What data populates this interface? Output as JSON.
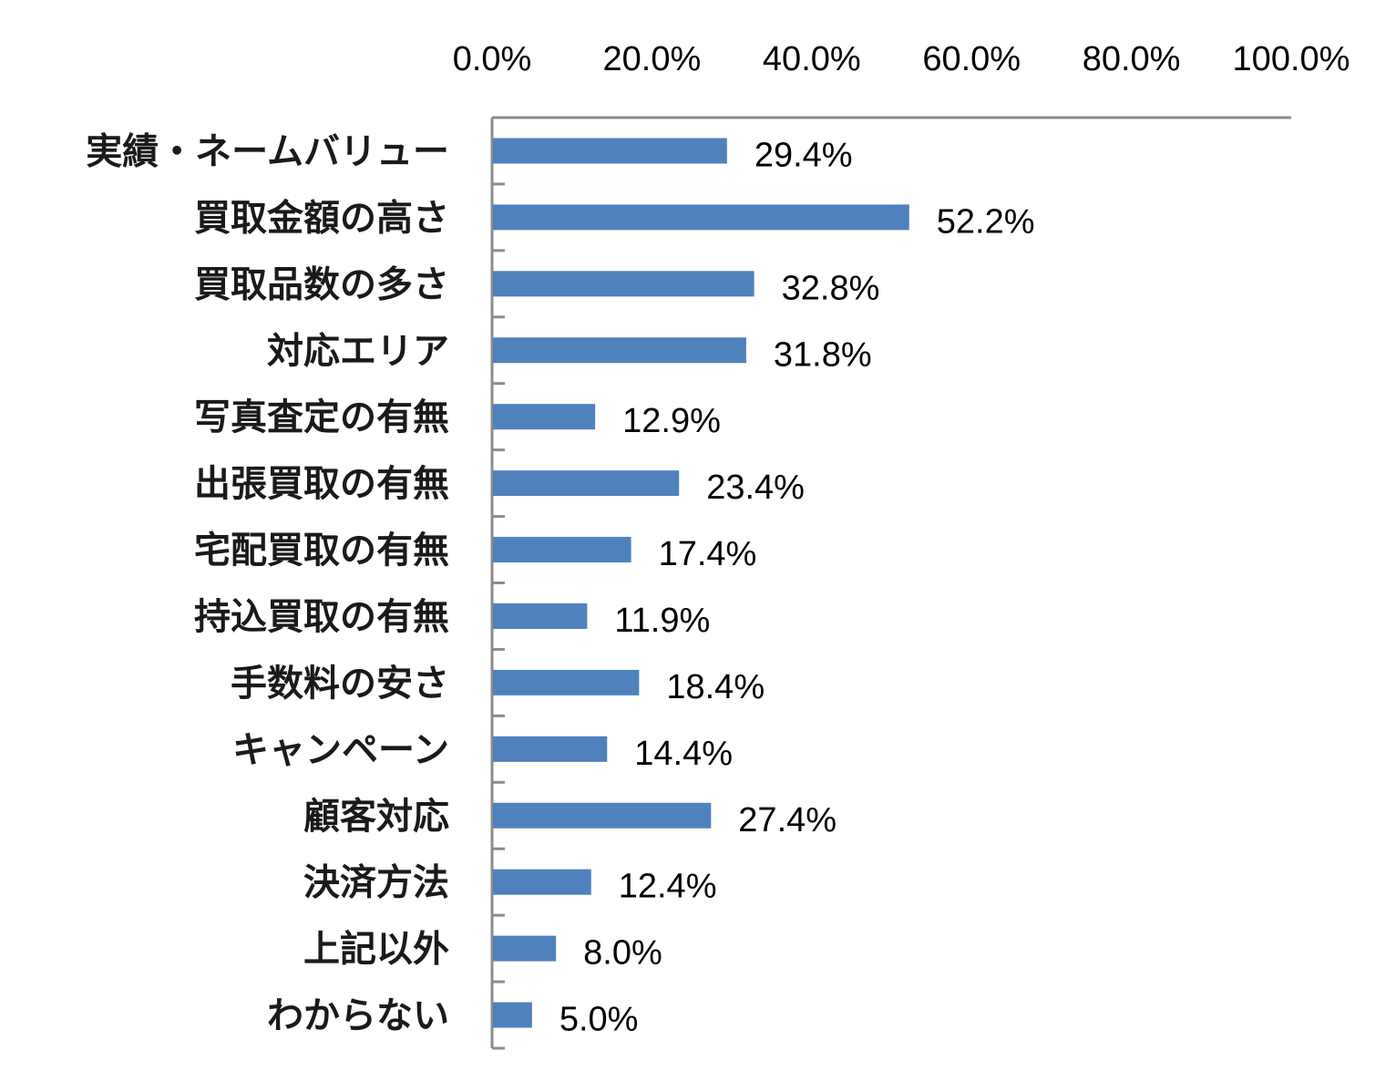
{
  "chart_data": {
    "type": "bar",
    "orientation": "horizontal",
    "categories": [
      "実績・ネームバリュー",
      "買取金額の高さ",
      "買取品数の多さ",
      "対応エリア",
      "写真査定の有無",
      "出張買取の有無",
      "宅配買取の有無",
      "持込買取の有無",
      "手数料の安さ",
      "キャンペーン",
      "顧客対応",
      "決済方法",
      "上記以外",
      "わからない"
    ],
    "values": [
      29.4,
      52.2,
      32.8,
      31.8,
      12.9,
      23.4,
      17.4,
      11.9,
      18.4,
      14.4,
      27.4,
      12.4,
      8.0,
      5.0
    ],
    "data_labels": [
      "29.4%",
      "52.2%",
      "32.8%",
      "31.8%",
      "12.9%",
      "23.4%",
      "17.4%",
      "11.9%",
      "18.4%",
      "14.4%",
      "27.4%",
      "12.4%",
      "8.0%",
      "5.0%"
    ],
    "xlim": [
      0,
      100
    ],
    "x_ticks": [
      0,
      20,
      40,
      60,
      80,
      100
    ],
    "x_tick_labels": [
      "0.0%",
      "20.0%",
      "40.0%",
      "60.0%",
      "80.0%",
      "100.0%"
    ],
    "x_axis_position": "top",
    "bar_color": "#4f81bd",
    "axis_color": "#8c8c8c",
    "grid": false,
    "legend": false,
    "title": "",
    "xlabel": "",
    "ylabel": ""
  }
}
